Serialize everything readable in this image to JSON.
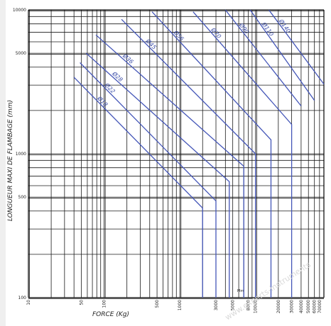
{
  "chart_data": {
    "type": "line",
    "title": "",
    "xlabel": "FORCE (Kg)",
    "ylabel": "LONGUEUR MAXI DE FLAMBAGE (mm)",
    "x_scale": "log",
    "y_scale": "log",
    "xlim": [
      10,
      80000
    ],
    "ylim": [
      100,
      10000
    ],
    "grid": true,
    "x_tick_labels": [
      "10",
      "50",
      "100",
      "500",
      "1000",
      "3000",
      "5000",
      "8000",
      "10000",
      "20000",
      "30000",
      "40000",
      "50000",
      "60000",
      "70000"
    ],
    "y_tick_labels": [
      "10000",
      "5000",
      "1000",
      "500",
      "100"
    ],
    "misc_text": [
      "Mm"
    ],
    "series": [
      {
        "name": "Ø18",
        "x": [
          40,
          2000,
          2000
        ],
        "y": [
          3400,
          420,
          100
        ]
      },
      {
        "name": "Ø22",
        "x": [
          48,
          3000,
          3000
        ],
        "y": [
          4300,
          470,
          100
        ]
      },
      {
        "name": "Ø28",
        "x": [
          58,
          4500,
          4500
        ],
        "y": [
          5000,
          640,
          100
        ]
      },
      {
        "name": "Ø36",
        "x": [
          78,
          7000,
          7000
        ],
        "y": [
          6700,
          820,
          100
        ]
      },
      {
        "name": "Ø45",
        "x": [
          170,
          10000,
          10000
        ],
        "y": [
          8600,
          1000,
          100
        ]
      },
      {
        "name": "Ø56",
        "x": [
          430,
          16000,
          16000
        ],
        "y": [
          9700,
          1250,
          100
        ]
      },
      {
        "name": "Ø70",
        "x": [
          1500,
          30000,
          30000
        ],
        "y": [
          9700,
          1600,
          100
        ]
      },
      {
        "name": "Ø90",
        "x": [
          4000,
          40000
        ],
        "y": [
          10000,
          2150
        ]
      },
      {
        "name": "Ø110",
        "x": [
          8500,
          60000
        ],
        "y": [
          10000,
          2350
        ]
      },
      {
        "name": "Ø140",
        "x": [
          15000,
          80000
        ],
        "y": [
          10000,
          3050
        ]
      }
    ],
    "colors": {
      "curve": "#4456b8",
      "curve_label": "#3d4fa8",
      "grid": "#1a1a1a"
    }
  },
  "watermark": "www.experts-instruments"
}
